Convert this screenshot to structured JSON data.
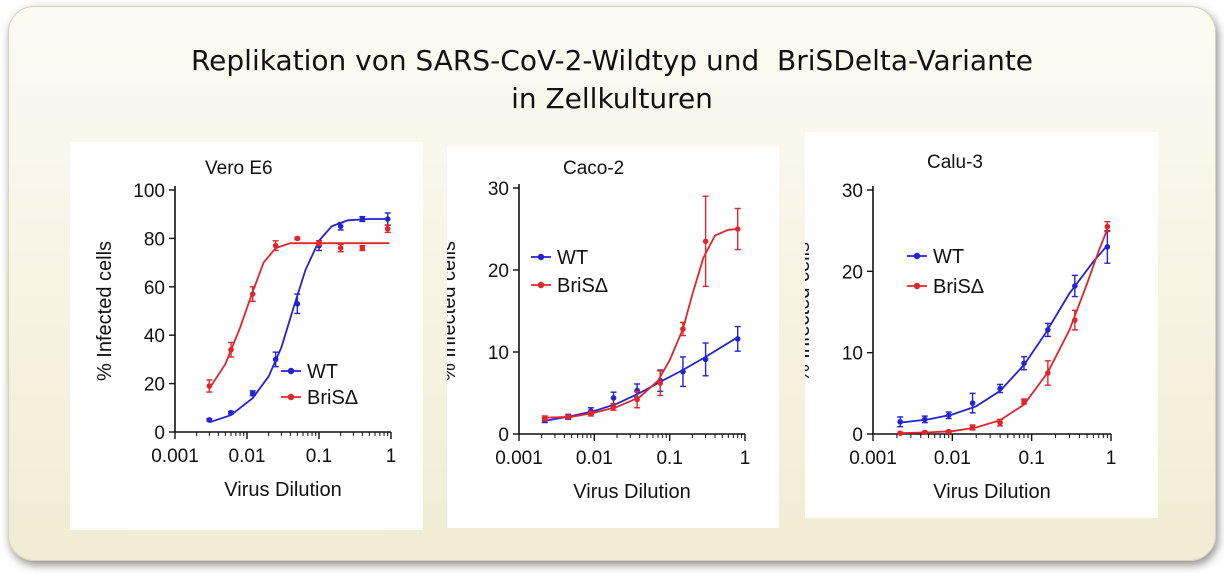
{
  "title": {
    "line1": "Replikation von SARS-CoV-2-Wildtyp und  BriSDelta-Variante",
    "line2": "in Zellkulturen"
  },
  "colors": {
    "wt": "#2323d4",
    "bris": "#e0262c"
  },
  "chart_data": [
    {
      "type": "line",
      "title": "Vero E6",
      "xlabel": "Virus Dilution",
      "ylabel": "% Infected cells",
      "xscale": "log",
      "xlim": [
        0.001,
        1
      ],
      "xticks": [
        "0.001",
        "0.01",
        "0.1",
        "1"
      ],
      "ylim": [
        0,
        100
      ],
      "yticks": [
        "0",
        "20",
        "40",
        "60",
        "80",
        "100"
      ],
      "legend": "bottom-right",
      "series": [
        {
          "name": "WT",
          "x": [
            0.003,
            0.006,
            0.012,
            0.025,
            0.05,
            0.1,
            0.2,
            0.4,
            0.9
          ],
          "y": [
            5,
            8,
            16,
            30,
            53,
            77,
            85,
            88,
            88
          ],
          "err": [
            0.5,
            0.5,
            1,
            3,
            4,
            2,
            1.5,
            1,
            2.5
          ],
          "fit": [
            [
              0.003,
              4
            ],
            [
              0.006,
              7
            ],
            [
              0.012,
              14
            ],
            [
              0.02,
              23
            ],
            [
              0.03,
              35
            ],
            [
              0.045,
              52
            ],
            [
              0.065,
              67
            ],
            [
              0.1,
              79
            ],
            [
              0.15,
              85
            ],
            [
              0.25,
              87.5
            ],
            [
              0.5,
              88
            ],
            [
              0.95,
              88
            ]
          ]
        },
        {
          "name": "BriSΔ",
          "x": [
            0.003,
            0.006,
            0.012,
            0.025,
            0.05,
            0.1,
            0.2,
            0.4,
            0.9
          ],
          "y": [
            19,
            34,
            57,
            77,
            80,
            78,
            76,
            76,
            84
          ],
          "err": [
            2.5,
            3,
            3,
            2,
            0.5,
            1,
            1.5,
            1,
            1.5
          ],
          "fit": [
            [
              0.003,
              18
            ],
            [
              0.005,
              28
            ],
            [
              0.008,
              43
            ],
            [
              0.012,
              58
            ],
            [
              0.017,
              70
            ],
            [
              0.025,
              76
            ],
            [
              0.04,
              78
            ],
            [
              0.1,
              78
            ],
            [
              0.3,
              78
            ],
            [
              0.95,
              78
            ]
          ]
        }
      ]
    },
    {
      "type": "line",
      "title": "Caco-2",
      "xlabel": "Virus Dilution",
      "ylabel": "% Infected cells",
      "xscale": "log",
      "xlim": [
        0.001,
        1
      ],
      "xticks": [
        "0.001",
        "0.01",
        "0.1",
        "1"
      ],
      "ylim": [
        0,
        30
      ],
      "yticks": [
        "0",
        "10",
        "20",
        "30"
      ],
      "legend": "top-left",
      "series": [
        {
          "name": "WT",
          "x": [
            0.0022,
            0.0045,
            0.009,
            0.018,
            0.037,
            0.075,
            0.15,
            0.3,
            0.8
          ],
          "y": [
            1.7,
            2.1,
            2.8,
            4.4,
            5.3,
            6.5,
            7.6,
            9.1,
            11.6
          ],
          "err": [
            0.3,
            0.3,
            0.4,
            0.7,
            0.8,
            1.3,
            1.8,
            2,
            1.5
          ],
          "fit": [
            [
              0.0022,
              1.6
            ],
            [
              0.005,
              2.2
            ],
            [
              0.01,
              2.8
            ],
            [
              0.02,
              3.7
            ],
            [
              0.04,
              5
            ],
            [
              0.08,
              6.5
            ],
            [
              0.15,
              7.8
            ],
            [
              0.3,
              9.4
            ],
            [
              0.8,
              11.8
            ]
          ]
        },
        {
          "name": "BriSΔ",
          "x": [
            0.0022,
            0.0045,
            0.009,
            0.018,
            0.037,
            0.075,
            0.15,
            0.3,
            0.8
          ],
          "y": [
            1.9,
            2.1,
            2.5,
            3.3,
            4.2,
            6.2,
            12.8,
            23.5,
            25
          ],
          "err": [
            0.3,
            0.2,
            0.3,
            0.4,
            1,
            1.5,
            0.8,
            5.5,
            2.5
          ],
          "fit": [
            [
              0.0022,
              2
            ],
            [
              0.005,
              2.1
            ],
            [
              0.01,
              2.6
            ],
            [
              0.02,
              3.3
            ],
            [
              0.04,
              4.5
            ],
            [
              0.07,
              6.5
            ],
            [
              0.1,
              9
            ],
            [
              0.15,
              12.8
            ],
            [
              0.2,
              17
            ],
            [
              0.28,
              21.5
            ],
            [
              0.4,
              24.2
            ],
            [
              0.6,
              24.9
            ],
            [
              0.8,
              25
            ]
          ]
        }
      ]
    },
    {
      "type": "line",
      "title": "Calu-3",
      "xlabel": "Virus Dilution",
      "ylabel": "% Infected cells",
      "xscale": "log",
      "xlim": [
        0.001,
        1
      ],
      "xticks": [
        "0.001",
        "0.01",
        "0.1",
        "1"
      ],
      "ylim": [
        0,
        30
      ],
      "yticks": [
        "0",
        "10",
        "20",
        "30"
      ],
      "legend": "top-left",
      "series": [
        {
          "name": "WT",
          "x": [
            0.0022,
            0.0045,
            0.009,
            0.018,
            0.04,
            0.08,
            0.16,
            0.35,
            0.9
          ],
          "y": [
            1.5,
            1.8,
            2.3,
            3.8,
            5.6,
            8.7,
            12.8,
            18.2,
            23
          ],
          "err": [
            0.6,
            0.4,
            0.4,
            1.2,
            0.5,
            0.8,
            0.8,
            1.3,
            2
          ],
          "fit": [
            [
              0.0022,
              1.4
            ],
            [
              0.005,
              1.8
            ],
            [
              0.01,
              2.4
            ],
            [
              0.02,
              3.4
            ],
            [
              0.04,
              5.3
            ],
            [
              0.08,
              8.5
            ],
            [
              0.15,
              12.4
            ],
            [
              0.3,
              17.3
            ],
            [
              0.6,
              21.2
            ],
            [
              0.9,
              23.2
            ]
          ]
        },
        {
          "name": "BriSΔ",
          "x": [
            0.0022,
            0.0045,
            0.009,
            0.018,
            0.04,
            0.08,
            0.16,
            0.35,
            0.9
          ],
          "y": [
            0.1,
            0.2,
            0.3,
            0.8,
            1.4,
            4,
            7.5,
            14,
            25.5
          ],
          "err": [
            0.1,
            0.1,
            0.1,
            0.3,
            0.4,
            0.3,
            1.5,
            1.2,
            0.6
          ],
          "fit": [
            [
              0.0022,
              0.1
            ],
            [
              0.005,
              0.2
            ],
            [
              0.01,
              0.35
            ],
            [
              0.02,
              0.8
            ],
            [
              0.04,
              1.7
            ],
            [
              0.08,
              3.6
            ],
            [
              0.16,
              7.6
            ],
            [
              0.3,
              12.8
            ],
            [
              0.5,
              18.5
            ],
            [
              0.7,
              22.5
            ],
            [
              0.9,
              25.2
            ]
          ]
        }
      ]
    }
  ]
}
